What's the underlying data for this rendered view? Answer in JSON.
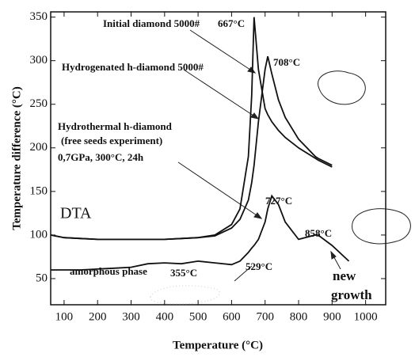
{
  "chart_data": {
    "type": "line",
    "x_label": "Temperature (°C)",
    "y_label": "Temperature difference (°C)",
    "xlim": [
      60,
      1060
    ],
    "xticks": [
      100,
      200,
      300,
      400,
      500,
      600,
      700,
      800,
      900,
      1000
    ],
    "ylim": [
      20,
      356
    ],
    "yticks": [
      50,
      100,
      150,
      200,
      250,
      300,
      350
    ],
    "x": [
      60,
      100,
      150,
      200,
      250,
      300,
      350,
      400,
      450,
      500,
      550,
      600,
      625,
      650,
      660,
      667,
      680,
      700,
      708,
      720,
      740,
      760,
      800,
      850,
      858,
      900,
      950
    ],
    "series": [
      {
        "color": "#111111",
        "values": [
          100,
          97,
          96,
          95,
          95,
          95,
          95,
          95,
          96,
          97,
          100,
          112,
          130,
          190,
          260,
          350,
          290,
          245,
          238,
          230,
          220,
          212,
          200,
          188,
          186,
          178,
          null
        ]
      },
      {
        "color": "#111111",
        "values": [
          100,
          97,
          96,
          95,
          95,
          95,
          95,
          95,
          96,
          97,
          99,
          108,
          118,
          140,
          160,
          180,
          230,
          290,
          305,
          285,
          255,
          235,
          210,
          190,
          188,
          180,
          null
        ]
      },
      {
        "color": "#111111",
        "values": [
          60,
          60,
          60,
          61,
          62,
          63,
          67,
          68,
          67,
          70,
          68,
          66,
          70,
          80,
          85,
          88,
          95,
          115,
          130,
          145,
          135,
          115,
          95,
          100,
          100,
          88,
          70
        ]
      }
    ],
    "annotations": [
      "Initial diamond 5000#",
      "667°C",
      "Hydrogenated h-diamond 5000#",
      "708°C",
      "Hydrothermal h-diamond",
      "(free seeds experiment)",
      "0,7GPa, 300°C, 24h",
      "DTA",
      "amorphous phase",
      "355°C",
      "529°C",
      "727°C",
      "858°C",
      "new",
      "growth"
    ]
  }
}
